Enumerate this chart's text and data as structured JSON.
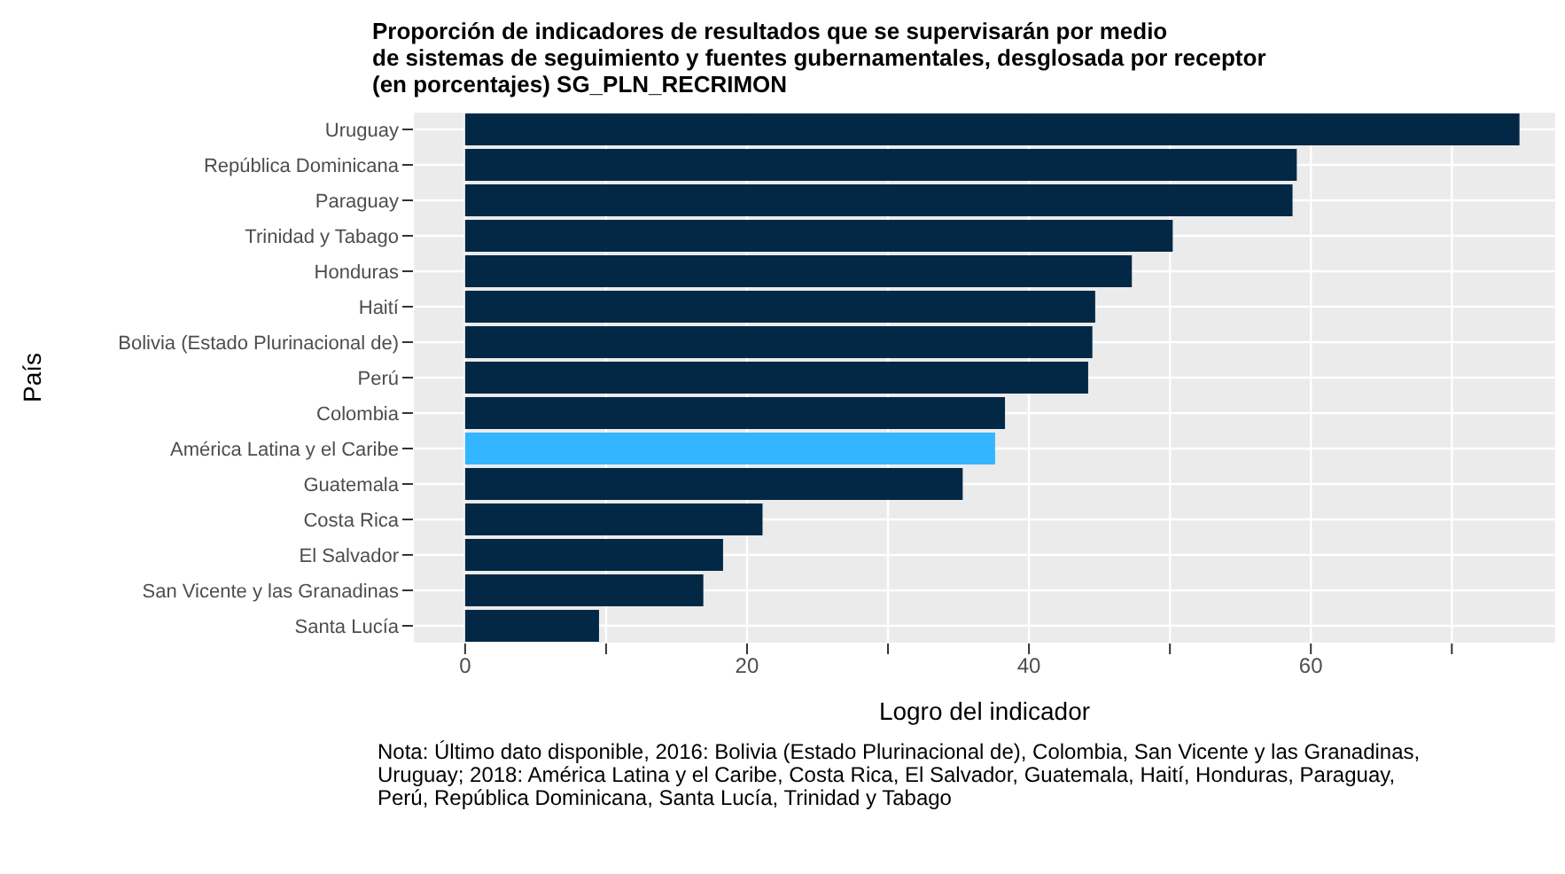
{
  "chart_data": {
    "type": "bar",
    "orientation": "horizontal",
    "title": "Proporción de indicadores de resultados que se supervisarán por medio\nde sistemas de seguimiento y fuentes gubernamentales, desglosada por receptor\n(en porcentajes) SG_PLN_RECRIMON",
    "xlabel": "Logro del indicador",
    "ylabel": "País",
    "categories": [
      "Uruguay",
      "República Dominicana",
      "Paraguay",
      "Trinidad y Tabago",
      "Honduras",
      "Haití",
      "Bolivia (Estado Plurinacional de)",
      "Perú",
      "Colombia",
      "América Latina y el Caribe",
      "Guatemala",
      "Costa Rica",
      "El Salvador",
      "San Vicente y las Granadinas",
      "Santa Lucía"
    ],
    "values": [
      74.8,
      59.0,
      58.7,
      50.2,
      47.3,
      44.7,
      44.5,
      44.2,
      38.3,
      37.6,
      35.3,
      21.1,
      18.3,
      16.9,
      9.5
    ],
    "colors": [
      "#032845",
      "#032845",
      "#032845",
      "#032845",
      "#032845",
      "#032845",
      "#032845",
      "#032845",
      "#032845",
      "#33b5ff",
      "#032845",
      "#032845",
      "#032845",
      "#032845",
      "#032845"
    ],
    "xlim": [
      -3.7,
      77.4
    ],
    "xticks": [
      0,
      {
        "value": 10,
        "label": null
      },
      20,
      {
        "value": 30,
        "label": null
      },
      40,
      {
        "value": 50,
        "label": null
      },
      60,
      {
        "value": 70,
        "label": null
      }
    ],
    "grid": true,
    "legend": false,
    "annotations": [
      "Nota: Último dato disponible, 2016: Bolivia (Estado Plurinacional de), Colombia, San Vicente y las Granadinas,\nUruguay; 2018: América Latina y el Caribe, Costa Rica, El Salvador, Guatemala, Haití, Honduras, Paraguay,\nPerú, República Dominicana, Santa Lucía, Trinidad y Tabago"
    ]
  }
}
